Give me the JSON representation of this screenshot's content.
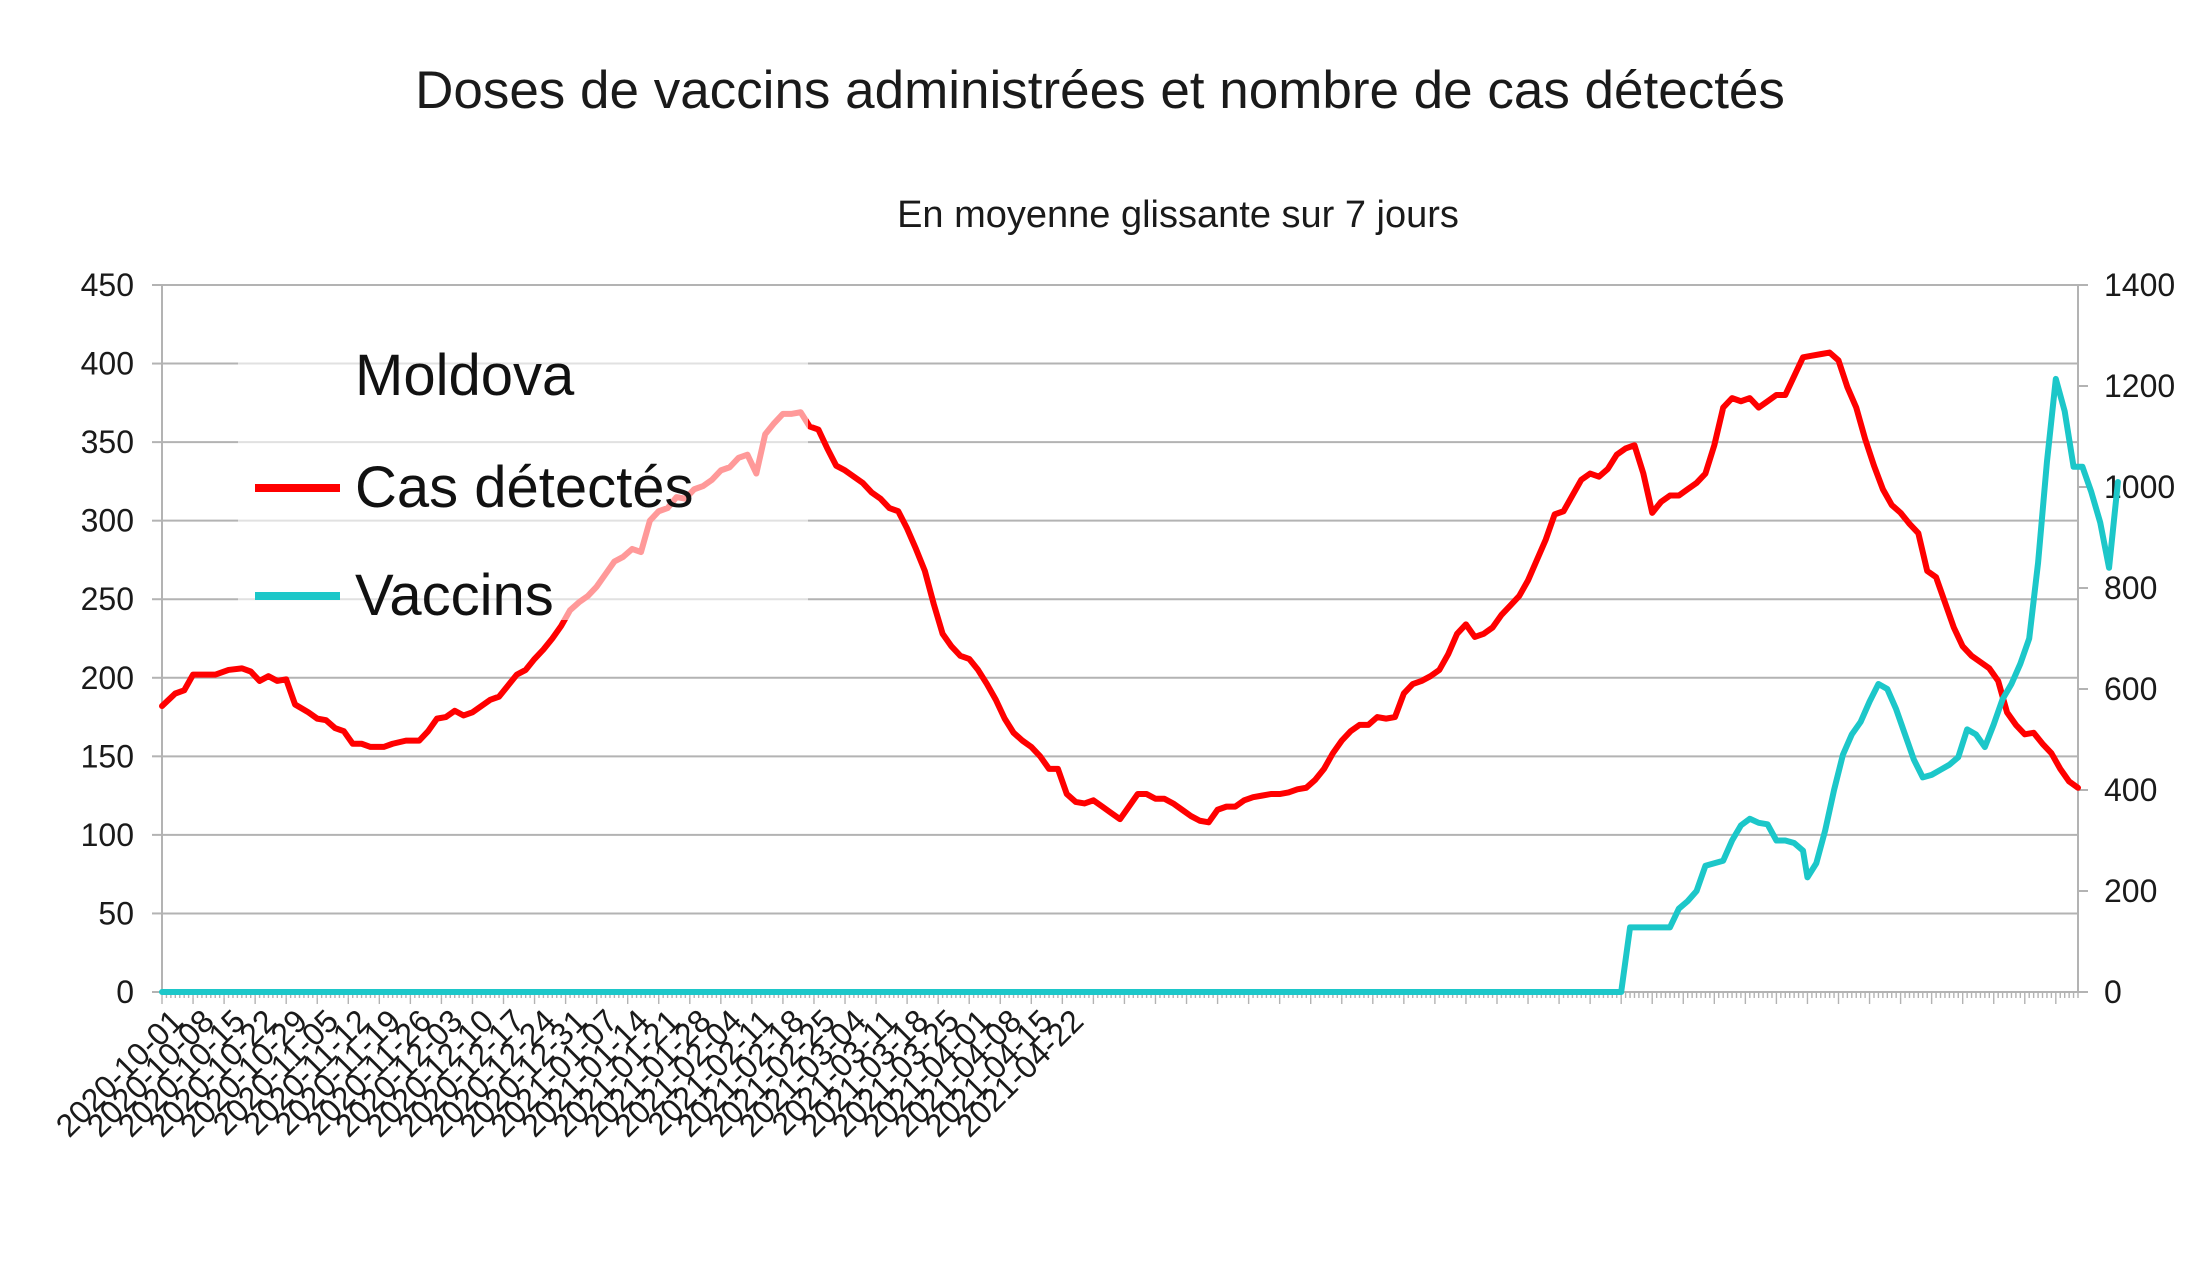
{
  "chart_data": {
    "type": "line",
    "title": "Doses de vaccins administrées et nombre de cas détectés",
    "subtitle": "En moyenne glissante sur 7 jours",
    "start_date": "2020-10-01",
    "x_tick_labels": [
      "2020-10-01",
      "2020-10-08",
      "2020-10-15",
      "2020-10-22",
      "2020-10-29",
      "2020-11-05",
      "2020-11-12",
      "2020-11-19",
      "2020-11-26",
      "2020-12-03",
      "2020-12-10",
      "2020-12-17",
      "2020-12-24",
      "2020-12-31",
      "2021-01-07",
      "2021-01-14",
      "2021-01-21",
      "2021-01-28",
      "2021-02-04",
      "2021-02-11",
      "2021-02-18",
      "2021-02-25",
      "2021-03-04",
      "2021-03-11",
      "2021-03-18",
      "2021-03-25",
      "2021-04-01",
      "2021-04-08",
      "2021-04-15",
      "2021-04-22"
    ],
    "y_left": {
      "min": 0,
      "max": 450,
      "step": 50
    },
    "y_right": {
      "min": 0,
      "max": 1400,
      "step": 200
    },
    "grid": true,
    "legend": {
      "position": "top-left",
      "title": "Moldova",
      "entries": [
        {
          "name": "Cas détectés",
          "color": "#ff0000"
        },
        {
          "name": "Vaccins",
          "color": "#1cc7c9"
        }
      ]
    },
    "series": [
      {
        "name": "Cas détectés",
        "axis": "left",
        "color": "#ff0000",
        "points": [
          [
            0,
            182
          ],
          [
            3,
            190
          ],
          [
            5,
            192
          ],
          [
            7,
            202
          ],
          [
            10,
            202
          ],
          [
            12,
            202
          ],
          [
            15,
            205
          ],
          [
            18,
            206
          ],
          [
            20,
            204
          ],
          [
            22,
            198
          ],
          [
            24,
            201
          ],
          [
            26,
            198
          ],
          [
            28,
            199
          ],
          [
            30,
            183
          ],
          [
            33,
            178
          ],
          [
            35,
            174
          ],
          [
            37,
            173
          ],
          [
            39,
            168
          ],
          [
            41,
            166
          ],
          [
            43,
            158
          ],
          [
            45,
            158
          ],
          [
            47,
            156
          ],
          [
            50,
            156
          ],
          [
            52,
            158
          ],
          [
            55,
            160
          ],
          [
            58,
            160
          ],
          [
            60,
            166
          ],
          [
            62,
            174
          ],
          [
            64,
            175
          ],
          [
            66,
            179
          ],
          [
            68,
            176
          ],
          [
            70,
            178
          ],
          [
            72,
            182
          ],
          [
            74,
            186
          ],
          [
            76,
            188
          ],
          [
            78,
            195
          ],
          [
            80,
            202
          ],
          [
            82,
            205
          ],
          [
            84,
            212
          ],
          [
            86,
            218
          ],
          [
            88,
            225
          ],
          [
            90,
            233
          ],
          [
            92,
            243
          ],
          [
            94,
            248
          ],
          [
            96,
            252
          ],
          [
            98,
            258
          ],
          [
            100,
            266
          ],
          [
            102,
            274
          ],
          [
            104,
            277
          ],
          [
            106,
            282
          ],
          [
            108,
            280
          ],
          [
            110,
            300
          ],
          [
            112,
            306
          ],
          [
            114,
            308
          ],
          [
            116,
            315
          ],
          [
            118,
            314
          ],
          [
            120,
            320
          ],
          [
            122,
            322
          ],
          [
            124,
            326
          ],
          [
            126,
            332
          ],
          [
            128,
            334
          ],
          [
            130,
            340
          ],
          [
            132,
            342
          ],
          [
            134,
            330
          ],
          [
            136,
            355
          ],
          [
            138,
            362
          ],
          [
            140,
            368
          ],
          [
            142,
            368
          ],
          [
            144,
            369
          ],
          [
            146,
            360
          ],
          [
            148,
            358
          ],
          [
            150,
            346
          ],
          [
            152,
            335
          ],
          [
            154,
            332
          ],
          [
            156,
            328
          ],
          [
            158,
            324
          ],
          [
            160,
            318
          ],
          [
            162,
            314
          ],
          [
            164,
            308
          ],
          [
            166,
            306
          ],
          [
            168,
            295
          ],
          [
            170,
            282
          ],
          [
            172,
            268
          ],
          [
            174,
            247
          ],
          [
            176,
            228
          ],
          [
            178,
            220
          ],
          [
            180,
            214
          ],
          [
            182,
            212
          ],
          [
            184,
            205
          ],
          [
            186,
            196
          ],
          [
            188,
            186
          ],
          [
            190,
            174
          ],
          [
            192,
            165
          ],
          [
            194,
            160
          ],
          [
            196,
            156
          ],
          [
            198,
            150
          ],
          [
            200,
            142
          ],
          [
            202,
            142
          ],
          [
            204,
            126
          ],
          [
            206,
            121
          ],
          [
            208,
            120
          ],
          [
            210,
            122
          ],
          [
            212,
            118
          ],
          [
            214,
            114
          ],
          [
            216,
            110
          ],
          [
            218,
            118
          ],
          [
            220,
            126
          ],
          [
            222,
            126
          ],
          [
            224,
            123
          ],
          [
            226,
            123
          ],
          [
            228,
            120
          ],
          [
            230,
            116
          ],
          [
            232,
            112
          ],
          [
            234,
            109
          ],
          [
            236,
            108
          ],
          [
            238,
            116
          ],
          [
            240,
            118
          ],
          [
            242,
            118
          ],
          [
            244,
            122
          ],
          [
            246,
            124
          ],
          [
            248,
            125
          ],
          [
            250,
            126
          ],
          [
            252,
            126
          ],
          [
            254,
            127
          ],
          [
            256,
            129
          ],
          [
            258,
            130
          ],
          [
            260,
            135
          ],
          [
            262,
            142
          ],
          [
            264,
            152
          ],
          [
            266,
            160
          ],
          [
            268,
            166
          ],
          [
            270,
            170
          ],
          [
            272,
            170
          ],
          [
            274,
            175
          ],
          [
            276,
            174
          ],
          [
            278,
            175
          ],
          [
            280,
            190
          ],
          [
            282,
            196
          ],
          [
            284,
            198
          ],
          [
            286,
            201
          ],
          [
            288,
            205
          ],
          [
            290,
            215
          ],
          [
            292,
            228
          ],
          [
            294,
            234
          ],
          [
            296,
            226
          ],
          [
            298,
            228
          ],
          [
            300,
            232
          ],
          [
            302,
            240
          ],
          [
            304,
            246
          ],
          [
            306,
            252
          ],
          [
            308,
            262
          ],
          [
            310,
            275
          ],
          [
            312,
            288
          ],
          [
            314,
            304
          ],
          [
            316,
            306
          ],
          [
            318,
            316
          ],
          [
            320,
            326
          ],
          [
            322,
            330
          ],
          [
            324,
            328
          ],
          [
            326,
            333
          ],
          [
            328,
            342
          ],
          [
            330,
            346
          ],
          [
            332,
            348
          ],
          [
            334,
            330
          ],
          [
            336,
            305
          ],
          [
            338,
            312
          ],
          [
            340,
            316
          ],
          [
            342,
            316
          ],
          [
            344,
            320
          ],
          [
            346,
            324
          ],
          [
            348,
            330
          ],
          [
            350,
            348
          ],
          [
            352,
            372
          ],
          [
            354,
            378
          ],
          [
            356,
            376
          ],
          [
            358,
            378
          ],
          [
            360,
            372
          ],
          [
            362,
            376
          ],
          [
            364,
            380
          ],
          [
            366,
            380
          ],
          [
            368,
            392
          ],
          [
            370,
            404
          ],
          [
            372,
            405
          ],
          [
            374,
            406
          ],
          [
            376,
            407
          ],
          [
            378,
            402
          ],
          [
            380,
            385
          ],
          [
            382,
            372
          ],
          [
            384,
            352
          ],
          [
            386,
            335
          ],
          [
            388,
            320
          ],
          [
            390,
            310
          ],
          [
            392,
            305
          ],
          [
            394,
            298
          ],
          [
            396,
            292
          ],
          [
            398,
            268
          ],
          [
            400,
            264
          ],
          [
            402,
            248
          ],
          [
            404,
            232
          ],
          [
            406,
            220
          ],
          [
            408,
            214
          ],
          [
            410,
            210
          ],
          [
            412,
            206
          ],
          [
            414,
            198
          ],
          [
            416,
            178
          ],
          [
            418,
            170
          ],
          [
            420,
            164
          ],
          [
            422,
            165
          ],
          [
            424,
            158
          ],
          [
            426,
            152
          ],
          [
            428,
            142
          ],
          [
            430,
            134
          ],
          [
            432,
            130
          ]
        ]
      },
      {
        "name": "Vaccins",
        "axis": "right",
        "color": "#1cc7c9",
        "points": [
          [
            0,
            0
          ],
          [
            328,
            0
          ],
          [
            329,
            0
          ],
          [
            331,
            128
          ],
          [
            337,
            128
          ],
          [
            340,
            128
          ],
          [
            342,
            165
          ],
          [
            344,
            180
          ],
          [
            346,
            200
          ],
          [
            348,
            250
          ],
          [
            350,
            255
          ],
          [
            352,
            260
          ],
          [
            354,
            300
          ],
          [
            356,
            330
          ],
          [
            358,
            343
          ],
          [
            360,
            335
          ],
          [
            362,
            332
          ],
          [
            364,
            300
          ],
          [
            366,
            300
          ],
          [
            368,
            295
          ],
          [
            370,
            280
          ],
          [
            371,
            227
          ],
          [
            373,
            255
          ],
          [
            375,
            320
          ],
          [
            377,
            400
          ],
          [
            379,
            470
          ],
          [
            381,
            510
          ],
          [
            383,
            535
          ],
          [
            385,
            575
          ],
          [
            387,
            610
          ],
          [
            389,
            600
          ],
          [
            391,
            560
          ],
          [
            393,
            510
          ],
          [
            395,
            460
          ],
          [
            397,
            425
          ],
          [
            399,
            430
          ],
          [
            401,
            440
          ],
          [
            403,
            450
          ],
          [
            405,
            465
          ],
          [
            407,
            520
          ],
          [
            409,
            510
          ],
          [
            411,
            485
          ],
          [
            413,
            530
          ],
          [
            415,
            580
          ],
          [
            417,
            610
          ],
          [
            419,
            650
          ],
          [
            421,
            700
          ],
          [
            423,
            850
          ],
          [
            425,
            1050
          ],
          [
            427,
            1214
          ],
          [
            429,
            1150
          ],
          [
            431,
            1040
          ],
          [
            433,
            1040
          ],
          [
            435,
            990
          ],
          [
            437,
            930
          ],
          [
            439,
            840
          ],
          [
            441,
            1010
          ]
        ]
      }
    ]
  }
}
